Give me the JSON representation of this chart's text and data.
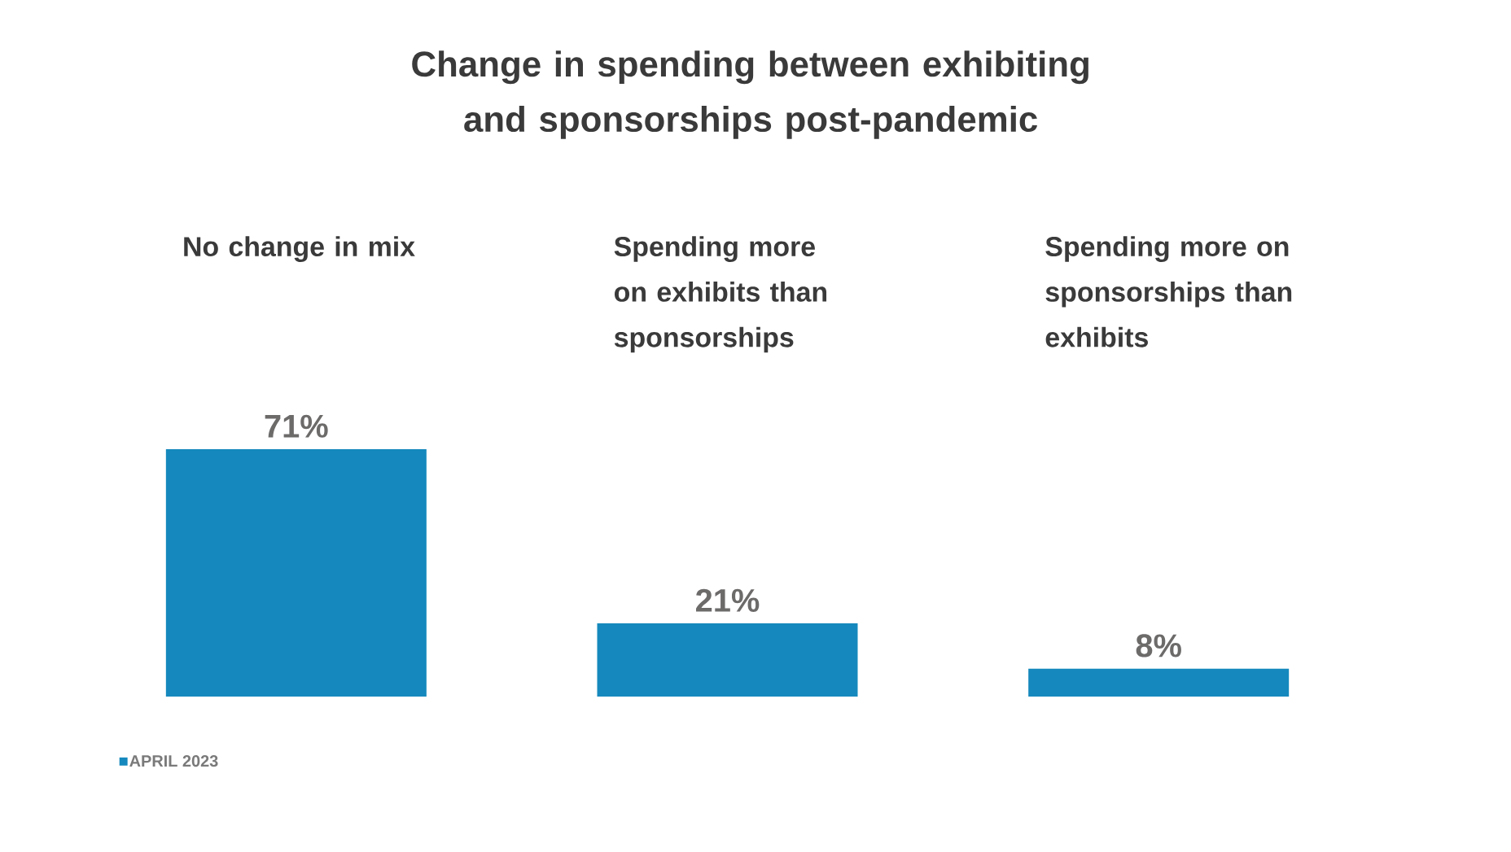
{
  "chart_data": {
    "type": "bar",
    "title": "Change in spending between exhibiting and sponsorships post-pandemic",
    "categories": [
      "No change in mix",
      "Spending more on exhibits than sponsorships",
      "Spending more on sponsorships than exhibits"
    ],
    "series": [
      {
        "name": "APRIL 2023",
        "color": "#1589bd",
        "values": [
          71,
          21,
          8
        ],
        "value_labels": [
          "71%",
          "21%",
          "8%"
        ]
      }
    ],
    "legend": "bottom left"
  }
}
